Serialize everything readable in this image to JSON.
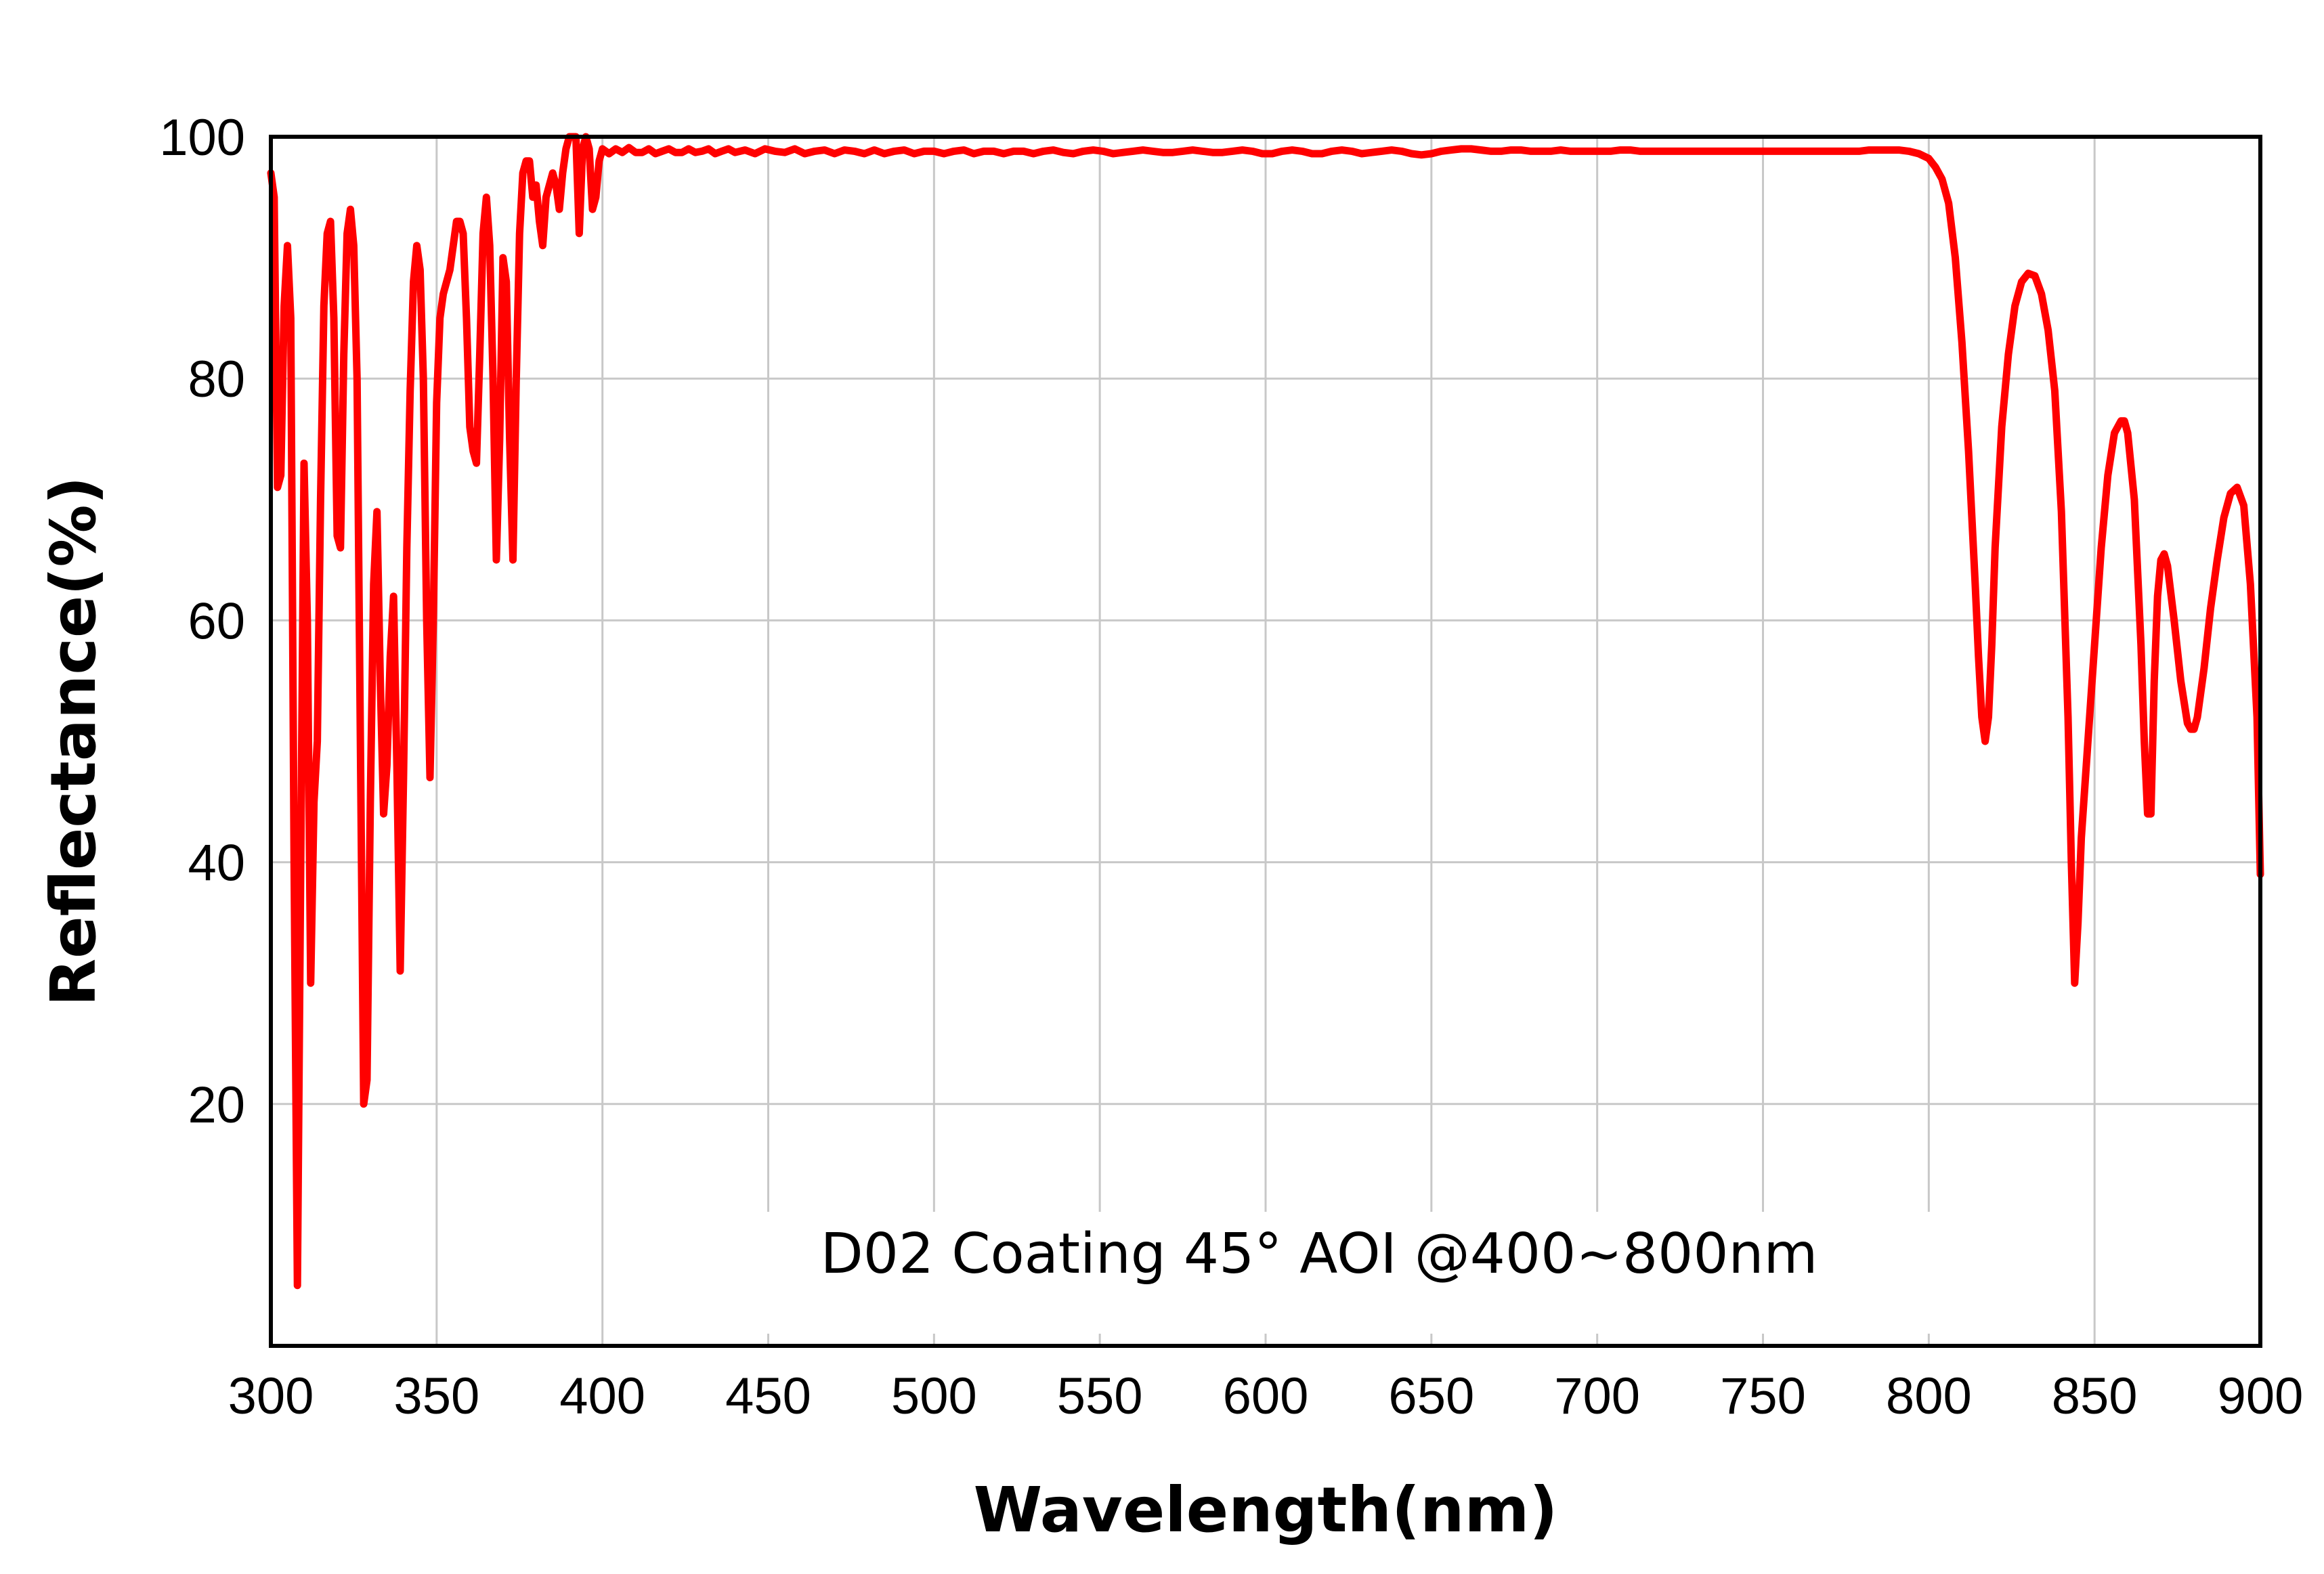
{
  "chart_data": {
    "type": "line",
    "xlabel": "Wavelength(nm)",
    "ylabel": "Reflectance(%)",
    "annotation": "D02 Coating  45°  AOI @400~800nm",
    "xlim": [
      300,
      900
    ],
    "ylim": [
      0,
      100
    ],
    "x_ticks": [
      300,
      350,
      400,
      450,
      500,
      550,
      600,
      650,
      700,
      750,
      800,
      850,
      900
    ],
    "y_ticks": [
      20,
      40,
      60,
      80,
      100
    ],
    "grid": true,
    "legend": "none",
    "series": [
      {
        "color": "#ff0000",
        "points": [
          [
            300,
            97
          ],
          [
            301,
            95
          ],
          [
            302,
            71
          ],
          [
            303,
            72
          ],
          [
            304,
            86
          ],
          [
            305,
            91
          ],
          [
            306,
            85
          ],
          [
            307,
            40
          ],
          [
            308,
            5
          ],
          [
            309,
            40
          ],
          [
            310,
            73
          ],
          [
            311,
            60
          ],
          [
            312,
            30
          ],
          [
            313,
            45
          ],
          [
            314,
            50
          ],
          [
            315,
            70
          ],
          [
            316,
            86
          ],
          [
            317,
            92
          ],
          [
            318,
            93
          ],
          [
            319,
            85
          ],
          [
            320,
            67
          ],
          [
            321,
            66
          ],
          [
            322,
            82
          ],
          [
            323,
            92
          ],
          [
            324,
            94
          ],
          [
            325,
            91
          ],
          [
            326,
            80
          ],
          [
            327,
            50
          ],
          [
            328,
            20
          ],
          [
            329,
            22
          ],
          [
            330,
            45
          ],
          [
            331,
            63
          ],
          [
            332,
            69
          ],
          [
            333,
            55
          ],
          [
            334,
            44
          ],
          [
            335,
            48
          ],
          [
            336,
            57
          ],
          [
            337,
            62
          ],
          [
            338,
            48
          ],
          [
            339,
            31
          ],
          [
            340,
            47
          ],
          [
            341,
            66
          ],
          [
            342,
            79
          ],
          [
            343,
            88
          ],
          [
            344,
            91
          ],
          [
            345,
            89
          ],
          [
            346,
            80
          ],
          [
            347,
            60
          ],
          [
            348,
            47
          ],
          [
            349,
            60
          ],
          [
            350,
            78
          ],
          [
            351,
            85
          ],
          [
            352,
            87
          ],
          [
            353,
            88
          ],
          [
            354,
            89
          ],
          [
            355,
            91
          ],
          [
            356,
            93
          ],
          [
            357,
            93
          ],
          [
            358,
            92
          ],
          [
            359,
            85
          ],
          [
            360,
            76
          ],
          [
            361,
            74
          ],
          [
            362,
            73
          ],
          [
            363,
            82
          ],
          [
            364,
            92
          ],
          [
            365,
            95
          ],
          [
            366,
            91
          ],
          [
            367,
            80
          ],
          [
            368,
            65
          ],
          [
            369,
            75
          ],
          [
            370,
            90
          ],
          [
            371,
            88
          ],
          [
            372,
            75
          ],
          [
            373,
            65
          ],
          [
            374,
            80
          ],
          [
            375,
            92
          ],
          [
            376,
            97
          ],
          [
            377,
            98
          ],
          [
            378,
            98
          ],
          [
            379,
            95
          ],
          [
            380,
            96
          ],
          [
            381,
            93
          ],
          [
            382,
            91
          ],
          [
            383,
            95
          ],
          [
            384,
            96
          ],
          [
            385,
            97
          ],
          [
            386,
            96
          ],
          [
            387,
            94
          ],
          [
            388,
            97
          ],
          [
            389,
            99
          ],
          [
            390,
            100
          ],
          [
            391,
            100
          ],
          [
            392,
            100
          ],
          [
            393,
            92
          ],
          [
            394,
            99
          ],
          [
            395,
            100
          ],
          [
            396,
            99
          ],
          [
            397,
            94
          ],
          [
            398,
            95
          ],
          [
            399,
            98
          ],
          [
            400,
            99
          ],
          [
            402,
            98.6
          ],
          [
            404,
            99
          ],
          [
            406,
            98.7
          ],
          [
            408,
            99.1
          ],
          [
            410,
            98.7
          ],
          [
            412,
            98.7
          ],
          [
            414,
            99
          ],
          [
            416,
            98.6
          ],
          [
            418,
            98.8
          ],
          [
            420,
            99
          ],
          [
            422,
            98.7
          ],
          [
            424,
            98.7
          ],
          [
            426,
            99
          ],
          [
            428,
            98.7
          ],
          [
            430,
            98.8
          ],
          [
            432,
            99
          ],
          [
            434,
            98.6
          ],
          [
            436,
            98.8
          ],
          [
            438,
            99
          ],
          [
            440,
            98.7
          ],
          [
            443,
            98.9
          ],
          [
            446,
            98.6
          ],
          [
            449,
            99
          ],
          [
            452,
            98.8
          ],
          [
            455,
            98.7
          ],
          [
            458,
            99
          ],
          [
            461,
            98.6
          ],
          [
            464,
            98.8
          ],
          [
            467,
            98.9
          ],
          [
            470,
            98.6
          ],
          [
            473,
            98.9
          ],
          [
            476,
            98.8
          ],
          [
            479,
            98.6
          ],
          [
            482,
            98.9
          ],
          [
            485,
            98.6
          ],
          [
            488,
            98.8
          ],
          [
            491,
            98.9
          ],
          [
            494,
            98.6
          ],
          [
            497,
            98.8
          ],
          [
            500,
            98.8
          ],
          [
            503,
            98.6
          ],
          [
            506,
            98.8
          ],
          [
            509,
            98.9
          ],
          [
            512,
            98.6
          ],
          [
            515,
            98.8
          ],
          [
            518,
            98.8
          ],
          [
            521,
            98.6
          ],
          [
            524,
            98.8
          ],
          [
            527,
            98.8
          ],
          [
            530,
            98.6
          ],
          [
            533,
            98.8
          ],
          [
            536,
            98.9
          ],
          [
            539,
            98.7
          ],
          [
            542,
            98.6
          ],
          [
            545,
            98.8
          ],
          [
            548,
            98.9
          ],
          [
            551,
            98.8
          ],
          [
            554,
            98.6
          ],
          [
            557,
            98.7
          ],
          [
            560,
            98.8
          ],
          [
            563,
            98.9
          ],
          [
            566,
            98.8
          ],
          [
            569,
            98.7
          ],
          [
            572,
            98.7
          ],
          [
            575,
            98.8
          ],
          [
            578,
            98.9
          ],
          [
            581,
            98.8
          ],
          [
            584,
            98.7
          ],
          [
            587,
            98.7
          ],
          [
            590,
            98.8
          ],
          [
            593,
            98.9
          ],
          [
            596,
            98.8
          ],
          [
            599,
            98.6
          ],
          [
            602,
            98.6
          ],
          [
            605,
            98.8
          ],
          [
            608,
            98.9
          ],
          [
            611,
            98.8
          ],
          [
            614,
            98.6
          ],
          [
            617,
            98.6
          ],
          [
            620,
            98.8
          ],
          [
            623,
            98.9
          ],
          [
            626,
            98.8
          ],
          [
            629,
            98.6
          ],
          [
            632,
            98.7
          ],
          [
            635,
            98.8
          ],
          [
            638,
            98.9
          ],
          [
            641,
            98.8
          ],
          [
            644,
            98.6
          ],
          [
            647,
            98.5
          ],
          [
            650,
            98.6
          ],
          [
            653,
            98.8
          ],
          [
            656,
            98.9
          ],
          [
            659,
            99
          ],
          [
            662,
            99
          ],
          [
            665,
            98.9
          ],
          [
            668,
            98.8
          ],
          [
            671,
            98.8
          ],
          [
            674,
            98.9
          ],
          [
            677,
            98.9
          ],
          [
            680,
            98.8
          ],
          [
            683,
            98.8
          ],
          [
            686,
            98.8
          ],
          [
            689,
            98.9
          ],
          [
            692,
            98.8
          ],
          [
            695,
            98.8
          ],
          [
            698,
            98.8
          ],
          [
            701,
            98.8
          ],
          [
            704,
            98.8
          ],
          [
            707,
            98.9
          ],
          [
            710,
            98.9
          ],
          [
            713,
            98.8
          ],
          [
            716,
            98.8
          ],
          [
            719,
            98.8
          ],
          [
            722,
            98.8
          ],
          [
            725,
            98.8
          ],
          [
            728,
            98.8
          ],
          [
            731,
            98.8
          ],
          [
            734,
            98.8
          ],
          [
            737,
            98.8
          ],
          [
            740,
            98.8
          ],
          [
            743,
            98.8
          ],
          [
            746,
            98.8
          ],
          [
            749,
            98.8
          ],
          [
            752,
            98.8
          ],
          [
            755,
            98.8
          ],
          [
            758,
            98.8
          ],
          [
            761,
            98.8
          ],
          [
            764,
            98.8
          ],
          [
            767,
            98.8
          ],
          [
            770,
            98.8
          ],
          [
            773,
            98.8
          ],
          [
            776,
            98.8
          ],
          [
            779,
            98.8
          ],
          [
            782,
            98.9
          ],
          [
            785,
            98.9
          ],
          [
            788,
            98.9
          ],
          [
            791,
            98.9
          ],
          [
            794,
            98.8
          ],
          [
            797,
            98.6
          ],
          [
            800,
            98.2
          ],
          [
            802,
            97.5
          ],
          [
            804,
            96.5
          ],
          [
            806,
            94.5
          ],
          [
            808,
            90
          ],
          [
            810,
            83
          ],
          [
            812,
            74
          ],
          [
            814,
            63
          ],
          [
            815,
            57
          ],
          [
            816,
            52
          ],
          [
            817,
            50
          ],
          [
            818,
            52
          ],
          [
            819,
            58
          ],
          [
            820,
            66
          ],
          [
            822,
            76
          ],
          [
            824,
            82
          ],
          [
            826,
            86
          ],
          [
            828,
            88
          ],
          [
            830,
            88.7
          ],
          [
            832,
            88.5
          ],
          [
            834,
            87
          ],
          [
            836,
            84
          ],
          [
            838,
            79
          ],
          [
            840,
            69
          ],
          [
            842,
            52
          ],
          [
            843,
            40
          ],
          [
            844,
            30
          ],
          [
            845,
            35
          ],
          [
            846,
            42
          ],
          [
            848,
            50
          ],
          [
            850,
            58
          ],
          [
            852,
            66
          ],
          [
            854,
            72
          ],
          [
            856,
            75.5
          ],
          [
            858,
            76.5
          ],
          [
            859,
            76.5
          ],
          [
            860,
            75.5
          ],
          [
            862,
            70
          ],
          [
            864,
            58
          ],
          [
            865,
            50
          ],
          [
            866,
            44
          ],
          [
            867,
            44
          ],
          [
            868,
            55
          ],
          [
            869,
            62
          ],
          [
            870,
            65
          ],
          [
            871,
            65.5
          ],
          [
            872,
            64.5
          ],
          [
            874,
            60
          ],
          [
            876,
            55
          ],
          [
            878,
            51.5
          ],
          [
            879,
            51
          ],
          [
            880,
            51
          ],
          [
            881,
            52
          ],
          [
            883,
            56
          ],
          [
            885,
            61
          ],
          [
            887,
            65
          ],
          [
            889,
            68.5
          ],
          [
            891,
            70.5
          ],
          [
            893,
            71
          ],
          [
            895,
            69.5
          ],
          [
            897,
            63
          ],
          [
            899,
            52
          ],
          [
            900,
            39
          ]
        ]
      }
    ]
  }
}
